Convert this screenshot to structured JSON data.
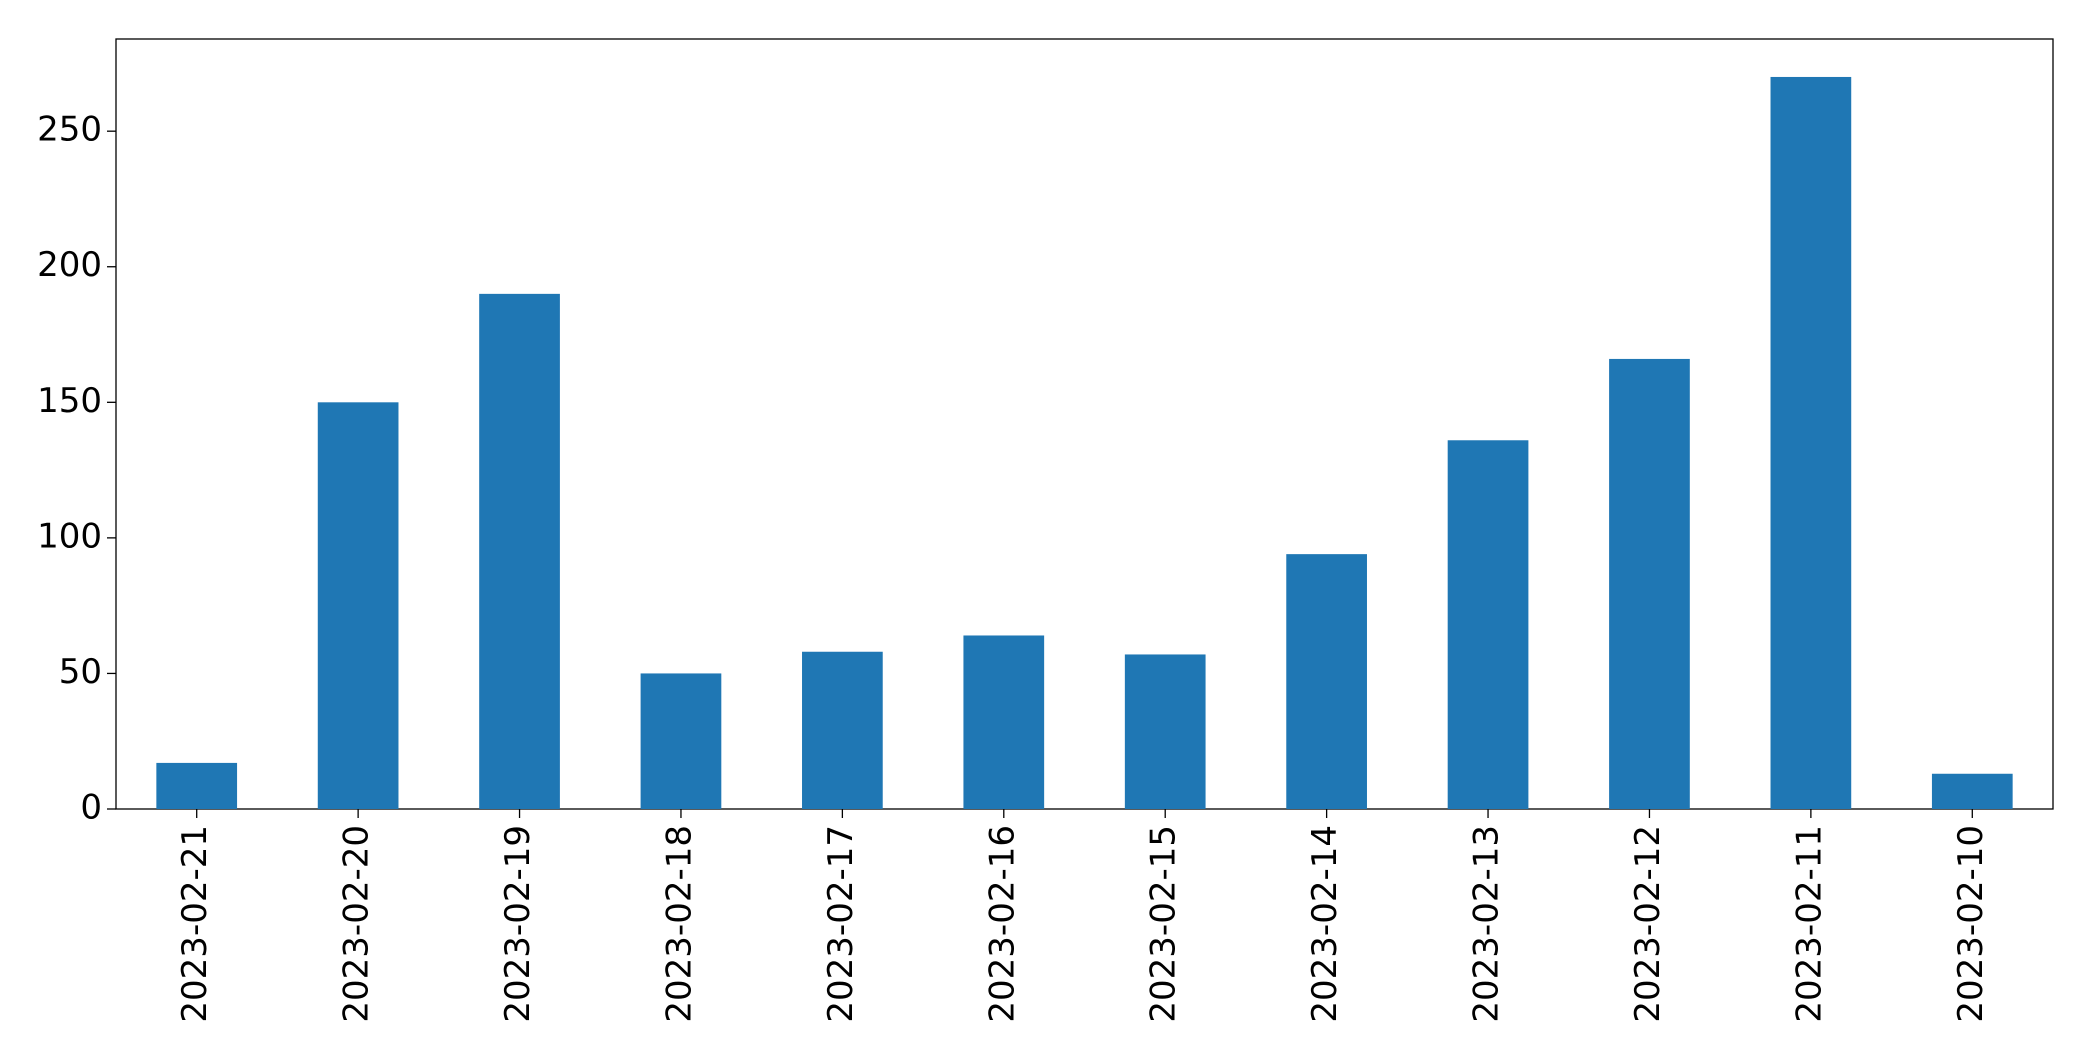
{
  "chart_data": {
    "type": "bar",
    "categories": [
      "2023-02-21",
      "2023-02-20",
      "2023-02-19",
      "2023-02-18",
      "2023-02-17",
      "2023-02-16",
      "2023-02-15",
      "2023-02-14",
      "2023-02-13",
      "2023-02-12",
      "2023-02-11",
      "2023-02-10"
    ],
    "values": [
      17,
      150,
      190,
      50,
      58,
      64,
      57,
      94,
      136,
      166,
      270,
      13
    ],
    "color": "#1f77b4",
    "ylim": [
      0,
      284
    ],
    "yticks": [
      0,
      50,
      100,
      150,
      200,
      250
    ],
    "grid": false
  }
}
